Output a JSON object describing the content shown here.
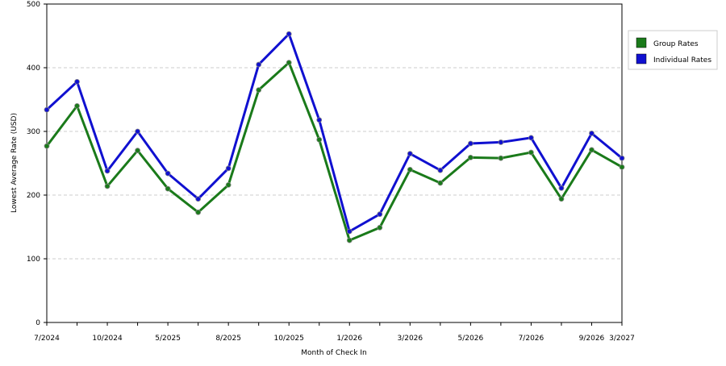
{
  "chart_data": {
    "type": "line",
    "x_label": "Month of Check In",
    "y_label": "Lowest Average Rate (USD)",
    "categories": [
      "7/2024",
      null,
      "10/2024",
      null,
      "5/2025",
      null,
      "8/2025",
      null,
      "10/2025",
      null,
      "1/2026",
      null,
      "3/2026",
      null,
      "5/2026",
      null,
      "7/2026",
      null,
      "9/2026",
      "3/2027"
    ],
    "series": [
      {
        "name": "Group Rates",
        "color": "#1a7a1a",
        "values": [
          277,
          340,
          214,
          270,
          210,
          173,
          216,
          365,
          408,
          287,
          129,
          149,
          240,
          219,
          259,
          258,
          267,
          194,
          271,
          244
        ]
      },
      {
        "name": "Individual Rates",
        "color": "#1010d0",
        "values": [
          334,
          378,
          238,
          300,
          234,
          194,
          242,
          405,
          453,
          318,
          143,
          170,
          265,
          239,
          281,
          283,
          290,
          211,
          297,
          258
        ]
      }
    ],
    "ylim": [
      0,
      500
    ],
    "yticks": [
      0,
      100,
      200,
      300,
      400,
      500
    ],
    "grid": true,
    "legend": "right"
  }
}
